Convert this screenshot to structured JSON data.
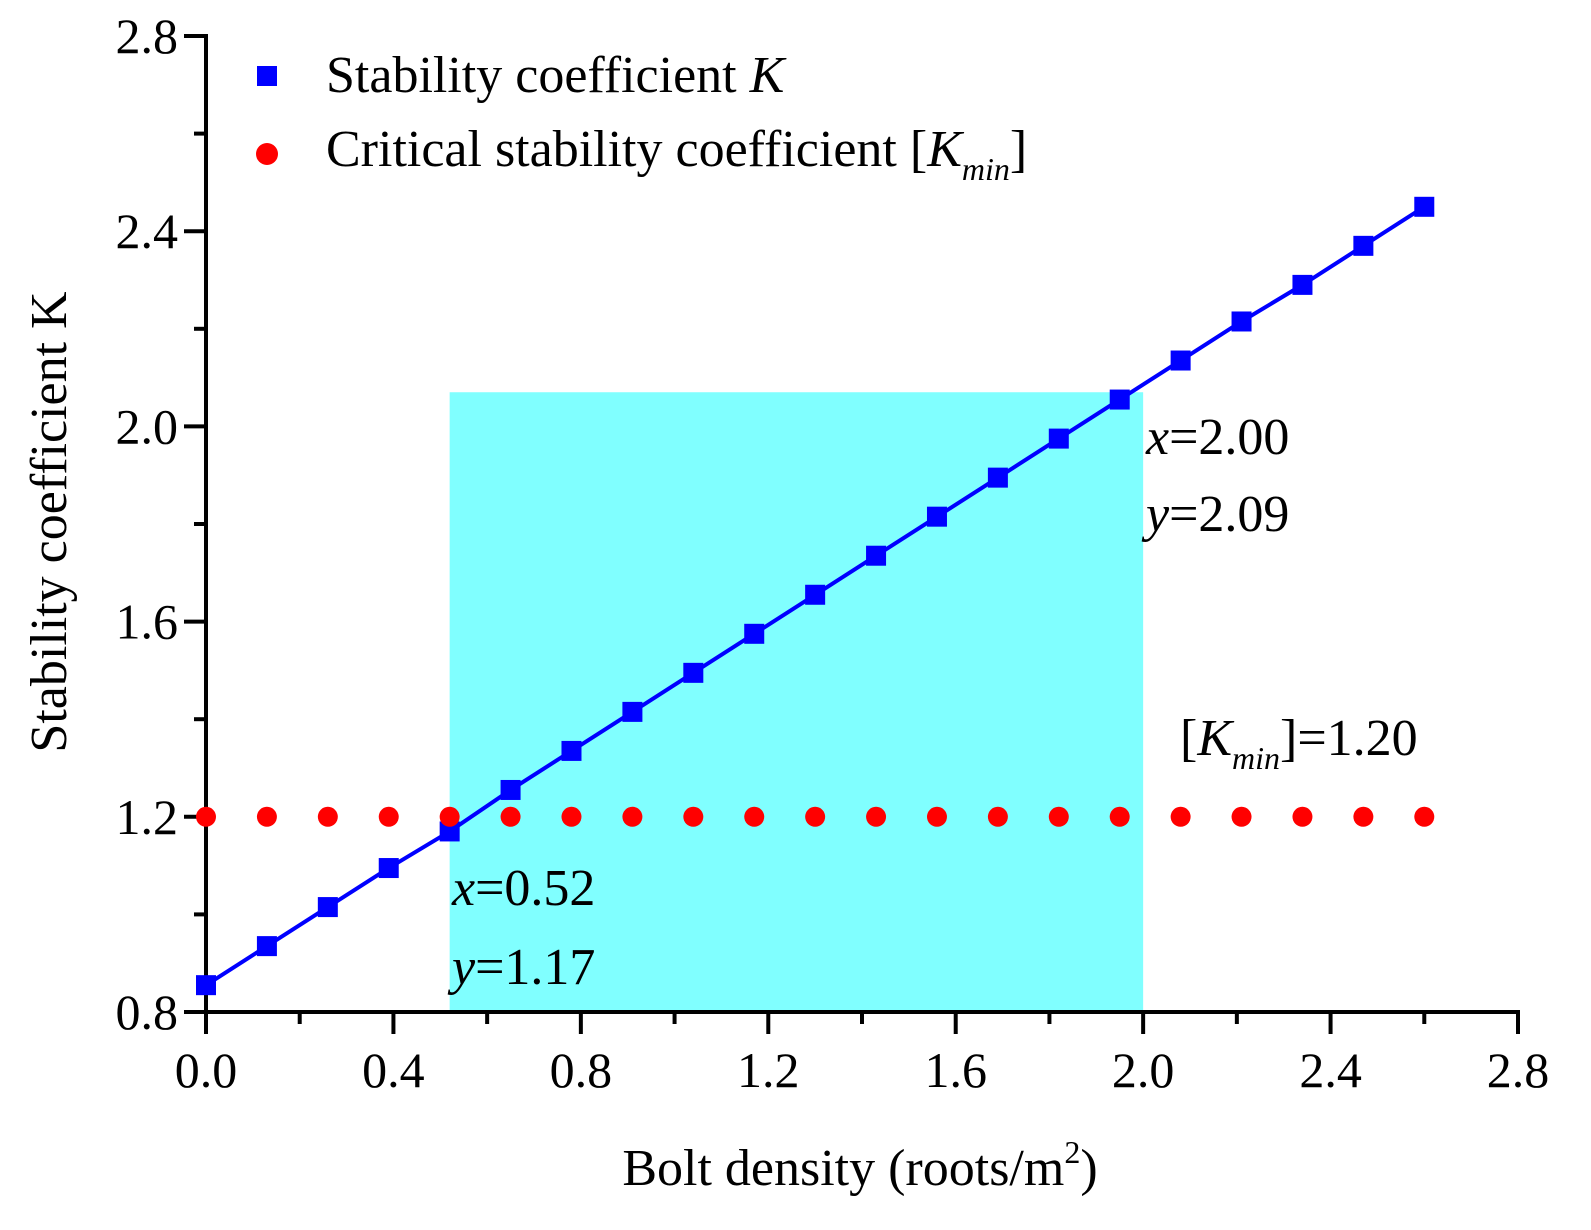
{
  "chart_data": {
    "type": "line",
    "title": "",
    "xlabel": "Bolt density (roots/m",
    "xlabel_sup": "2",
    "xlabel_close": ")",
    "ylabel": "Stability coefficient K",
    "xlim": [
      0.0,
      2.8
    ],
    "ylim": [
      0.8,
      2.8
    ],
    "xticks": [
      0.0,
      0.4,
      0.8,
      1.2,
      1.6,
      2.0,
      2.4,
      2.8
    ],
    "yticks": [
      0.8,
      1.2,
      1.6,
      2.0,
      2.4,
      2.8
    ],
    "xtick_labels": [
      "0.0",
      "0.4",
      "0.8",
      "1.2",
      "1.6",
      "2.0",
      "2.4",
      "2.8"
    ],
    "ytick_labels": [
      "0.8",
      "1.2",
      "1.6",
      "2.0",
      "2.4",
      "2.8"
    ],
    "grid": false,
    "legend_position": "top-left",
    "series": [
      {
        "name": "Stability coefficient K",
        "marker": "square",
        "line": true,
        "color": "#0000ff",
        "x": [
          0,
          0.13,
          0.26,
          0.39,
          0.52,
          0.65,
          0.78,
          0.91,
          1.04,
          1.17,
          1.3,
          1.43,
          1.56,
          1.69,
          1.82,
          1.95,
          2.08,
          2.21,
          2.34,
          2.47,
          2.6
        ],
        "values": [
          0.855,
          0.935,
          1.015,
          1.095,
          1.17,
          1.255,
          1.335,
          1.415,
          1.495,
          1.575,
          1.655,
          1.735,
          1.815,
          1.895,
          1.975,
          2.055,
          2.135,
          2.215,
          2.29,
          2.37,
          2.45
        ]
      },
      {
        "name": "Critical stability coefficient [Kmin]",
        "marker": "circle",
        "line": false,
        "color": "#ff0000",
        "x": [
          0,
          0.13,
          0.26,
          0.39,
          0.52,
          0.65,
          0.78,
          0.91,
          1.04,
          1.17,
          1.3,
          1.43,
          1.56,
          1.69,
          1.82,
          1.95,
          2.08,
          2.21,
          2.34,
          2.47,
          2.6
        ],
        "values": [
          1.2,
          1.2,
          1.2,
          1.2,
          1.2,
          1.2,
          1.2,
          1.2,
          1.2,
          1.2,
          1.2,
          1.2,
          1.2,
          1.2,
          1.2,
          1.2,
          1.2,
          1.2,
          1.2,
          1.2,
          1.2
        ]
      }
    ],
    "highlight_region": {
      "x_range": [
        0.52,
        2.0
      ],
      "y_range": [
        0.8,
        2.07
      ],
      "color": "#80ffff"
    },
    "annotations": {
      "left": {
        "x_text": "=0.52",
        "y_text": "=1.17"
      },
      "right": {
        "x_text": "=2.00",
        "y_text": "=2.09"
      },
      "kmin": {
        "open": "[",
        "k": "K",
        "sub": "min",
        "close": "]=1.20"
      }
    },
    "legend": {
      "k_label": "Stability coefficient ",
      "k_symbol": "K",
      "kmin_label": "Critical stability coefficient [",
      "kmin_symbol": "K",
      "kmin_sub": "min",
      "kmin_close": "]"
    },
    "var_x": "x",
    "var_y": "y"
  }
}
